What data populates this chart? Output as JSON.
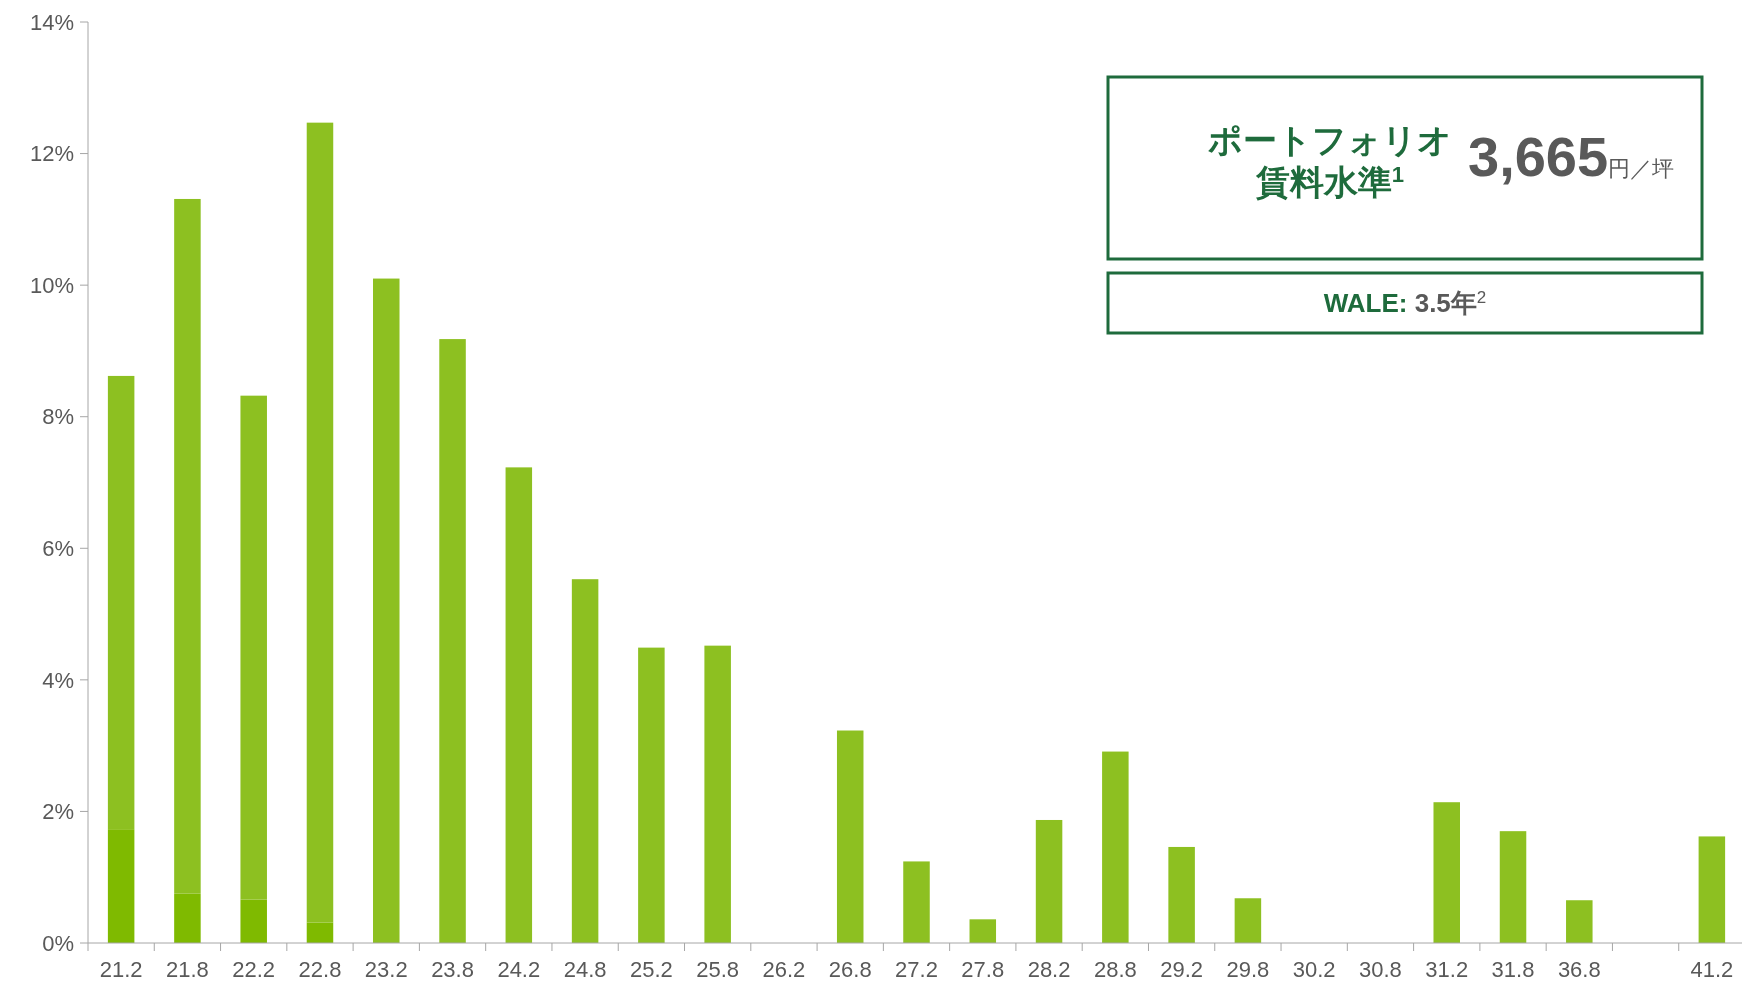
{
  "chart_data": {
    "type": "bar",
    "stacked": true,
    "categories": [
      "21.2",
      "21.8",
      "22.2",
      "22.8",
      "23.2",
      "23.8",
      "24.2",
      "24.8",
      "25.2",
      "25.8",
      "26.2",
      "26.8",
      "27.2",
      "27.8",
      "28.2",
      "28.8",
      "29.2",
      "29.8",
      "30.2",
      "30.8",
      "31.2",
      "31.8",
      "36.8",
      null,
      "41.2"
    ],
    "series": [
      {
        "color": "#7fba00",
        "values": [
          1.73,
          0.75,
          0.66,
          0.31,
          null,
          null,
          null,
          null,
          null,
          null,
          null,
          null,
          null,
          null,
          null,
          null,
          null,
          null,
          null,
          null,
          null,
          null,
          null,
          null,
          null
        ]
      },
      {
        "color": "#8dc021",
        "values": [
          6.89,
          10.56,
          7.66,
          12.16,
          10.1,
          9.18,
          7.23,
          5.53,
          4.49,
          4.52,
          null,
          3.23,
          1.24,
          0.36,
          1.87,
          2.91,
          1.46,
          0.68,
          null,
          null,
          2.14,
          1.7,
          0.65,
          null,
          1.62
        ]
      }
    ],
    "ylim": [
      0,
      14
    ],
    "yticks": [
      {
        "value": 0,
        "label": "0%"
      },
      {
        "value": 2,
        "label": "2%"
      },
      {
        "value": 4,
        "label": "4%"
      },
      {
        "value": 6,
        "label": "6%"
      },
      {
        "value": 8,
        "label": "8%"
      },
      {
        "value": 10,
        "label": "10%"
      },
      {
        "value": 12,
        "label": "12%"
      },
      {
        "value": 14,
        "label": "14%"
      }
    ],
    "annotations": [
      "ポートフォリオ",
      "賃料水準$^{1}$",
      "3,665",
      "円／坪",
      "WALE:",
      "3.5年$^{2}$"
    ]
  }
}
